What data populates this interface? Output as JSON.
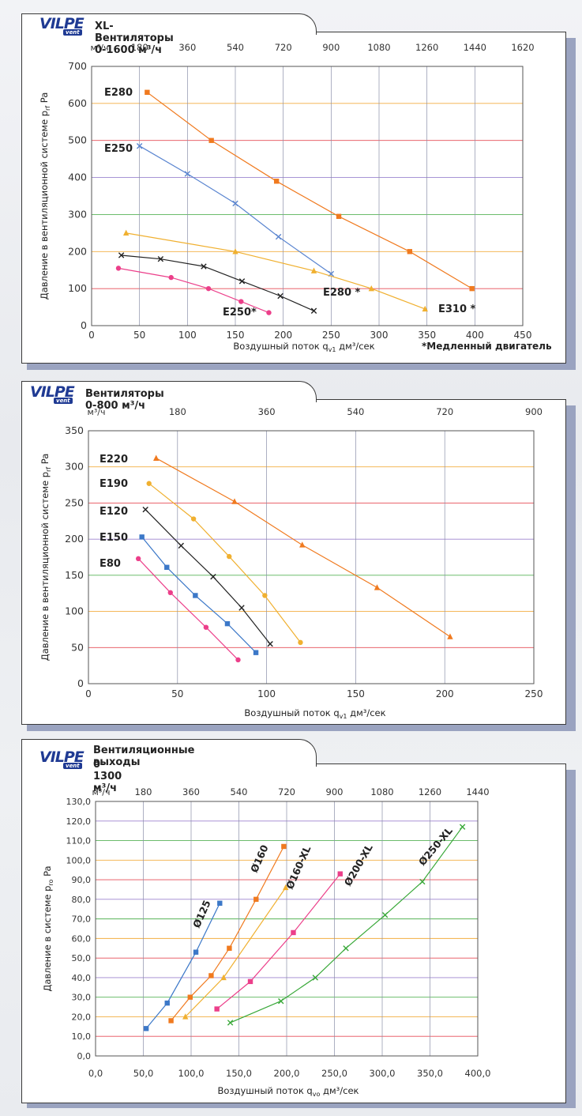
{
  "brand": {
    "logo": "VILPE",
    "logo_sub": "vent"
  },
  "chart_data": [
    {
      "type": "line",
      "title": "XL-Вентиляторы 0-1600 м³/ч",
      "top_axis": {
        "unit": "м³/ч",
        "ticks": [
          "180",
          "360",
          "540",
          "720",
          "900",
          "1080",
          "1260",
          "1440",
          "1620"
        ]
      },
      "xlabel": "Воздушный поток q",
      "xlabel_sub": "v1",
      "xlabel_unit": " дм³/сек",
      "ylabel": "Давление в вентиляционной системе p",
      "ylabel_sub": "rf",
      "ylabel_unit": " Pa",
      "xlim": [
        0,
        450
      ],
      "ylim": [
        0,
        700
      ],
      "xticks": [
        "0",
        "50",
        "100",
        "150",
        "200",
        "250",
        "300",
        "350",
        "400",
        "450"
      ],
      "yticks": [
        "0",
        "100",
        "200",
        "300",
        "400",
        "500",
        "600",
        "700"
      ],
      "footnote": "*Медленный двигатель",
      "series": [
        {
          "name": "E280",
          "color": "#f07a1f",
          "marker": "square",
          "x": [
            58,
            125,
            193,
            258,
            332,
            397
          ],
          "y": [
            630,
            500,
            390,
            295,
            200,
            100
          ]
        },
        {
          "name": "E250",
          "color": "#5a85d0",
          "marker": "x",
          "x": [
            50,
            100,
            150,
            195,
            250
          ],
          "y": [
            485,
            410,
            330,
            240,
            140
          ]
        },
        {
          "name": "E310 *",
          "color": "#f0b030",
          "marker": "triangle",
          "x": [
            36,
            150,
            232,
            292,
            348
          ],
          "y": [
            250,
            200,
            148,
            100,
            45
          ]
        },
        {
          "name": "E280 *",
          "color": "#222222",
          "marker": "x",
          "x": [
            31,
            72,
            117,
            157,
            197,
            232
          ],
          "y": [
            190,
            180,
            160,
            120,
            80,
            40
          ]
        },
        {
          "name": "E250*",
          "color": "#ec3f8a",
          "marker": "circle",
          "x": [
            28,
            83,
            122,
            156,
            185
          ],
          "y": [
            155,
            130,
            100,
            65,
            35
          ]
        }
      ],
      "series_labels": [
        "E280",
        "E250",
        "E280 *",
        "E250*",
        "E310 *"
      ]
    },
    {
      "type": "line",
      "title": "Вентиляторы 0-800 м³/ч",
      "top_axis": {
        "unit": "м³/ч",
        "ticks": [
          "180",
          "360",
          "540",
          "720",
          "900"
        ]
      },
      "xlabel": "Воздушный поток q",
      "xlabel_sub": "v1",
      "xlabel_unit": " дм³/сек",
      "ylabel": "Давление в вентиляционной системе p",
      "ylabel_sub": "rf",
      "ylabel_unit": " Pa",
      "xlim": [
        0,
        250
      ],
      "ylim": [
        0,
        350
      ],
      "xticks": [
        "0",
        "50",
        "100",
        "150",
        "200",
        "250"
      ],
      "yticks": [
        "0",
        "50",
        "100",
        "150",
        "200",
        "250",
        "300",
        "350"
      ],
      "series": [
        {
          "name": "E220",
          "color": "#f07a1f",
          "marker": "triangle",
          "x": [
            38,
            82,
            120,
            162,
            203
          ],
          "y": [
            312,
            252,
            192,
            133,
            65
          ]
        },
        {
          "name": "E190",
          "color": "#f0b030",
          "marker": "circle",
          "x": [
            34,
            59,
            79,
            99,
            119
          ],
          "y": [
            277,
            228,
            176,
            122,
            57
          ]
        },
        {
          "name": "E120",
          "color": "#222222",
          "marker": "x",
          "x": [
            32,
            52,
            70,
            86,
            102
          ],
          "y": [
            241,
            191,
            148,
            105,
            55
          ]
        },
        {
          "name": "E150",
          "color": "#3c78c8",
          "marker": "square",
          "x": [
            30,
            44,
            60,
            78,
            94
          ],
          "y": [
            203,
            161,
            122,
            83,
            43
          ]
        },
        {
          "name": "E80",
          "color": "#ec3f8a",
          "marker": "circle",
          "x": [
            28,
            46,
            66,
            84
          ],
          "y": [
            173,
            126,
            78,
            33
          ]
        }
      ]
    },
    {
      "type": "line",
      "title": "Вентиляционные выходы",
      "title2": "0-1300 м³/ч",
      "top_axis": {
        "unit": "м³/ч",
        "ticks": [
          "180",
          "360",
          "540",
          "720",
          "900",
          "1080",
          "1260",
          "1440"
        ]
      },
      "xlabel": "Воздушный поток q",
      "xlabel_sub": "vo",
      "xlabel_unit": " дм³/сек",
      "ylabel": "Давление в системе p",
      "ylabel_sub": "ro",
      "ylabel_unit": " Pa",
      "xlim": [
        0,
        400
      ],
      "ylim": [
        0,
        130
      ],
      "xticks": [
        "0,0",
        "50,0",
        "100,0",
        "150,0",
        "200,0",
        "250,0",
        "300,0",
        "350,0",
        "400,0"
      ],
      "yticks": [
        "0,0",
        "10,0",
        "20,0",
        "30,0",
        "40,0",
        "50,0",
        "60,0",
        "70,0",
        "80,0",
        "90,0",
        "100,0",
        "110,0",
        "120,0",
        "130,0"
      ],
      "series": [
        {
          "name": "Ø125",
          "color": "#3c78c8",
          "marker": "square",
          "x": [
            53,
            75,
            105,
            130
          ],
          "y": [
            14,
            27,
            53,
            78
          ]
        },
        {
          "name": "Ø160",
          "color": "#f07a1f",
          "marker": "square",
          "x": [
            79,
            99,
            121,
            140,
            168,
            197
          ],
          "y": [
            18,
            30,
            41,
            55,
            80,
            107
          ]
        },
        {
          "name": "Ø160-XL",
          "color": "#f0b030",
          "marker": "triangle",
          "x": [
            94,
            134,
            199
          ],
          "y": [
            20,
            40,
            86
          ]
        },
        {
          "name": "Ø200-XL",
          "color": "#ec3f8a",
          "marker": "square",
          "x": [
            127,
            162,
            207,
            256
          ],
          "y": [
            24,
            38,
            63,
            93
          ]
        },
        {
          "name": "Ø250-XL",
          "color": "#38a838",
          "marker": "x",
          "x": [
            141,
            194,
            230,
            262,
            303,
            342,
            384
          ],
          "y": [
            17,
            28,
            40,
            55,
            72,
            89,
            117
          ]
        }
      ]
    }
  ]
}
